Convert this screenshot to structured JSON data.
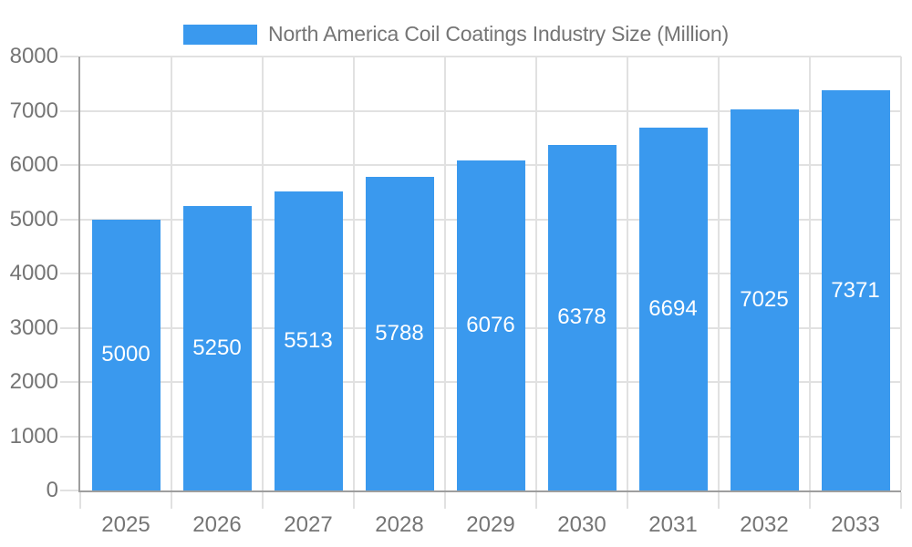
{
  "chart_data": {
    "type": "bar",
    "title": "North America Coil Coatings Industry Size (Million)",
    "categories": [
      "2025",
      "2026",
      "2027",
      "2028",
      "2029",
      "2030",
      "2031",
      "2032",
      "2033"
    ],
    "values": [
      5000,
      5250,
      5513,
      5788,
      6076,
      6378,
      6694,
      7025,
      7371
    ],
    "xlabel": "",
    "ylabel": "",
    "ylim": [
      0,
      8000
    ],
    "yticks": [
      0,
      1000,
      2000,
      3000,
      4000,
      5000,
      6000,
      7000,
      8000
    ],
    "grid": true,
    "legend_position": "top",
    "value_labels": "centered-inside-bars",
    "bar_color": "#3A99EE",
    "value_label_color": "#FFFFFF",
    "axis_color": "#9E9E9E",
    "gridline_color": "#E1E1E1",
    "text_color": "#757575"
  },
  "legend": {
    "label": "North America Coil Coatings Industry Size (Million)"
  }
}
